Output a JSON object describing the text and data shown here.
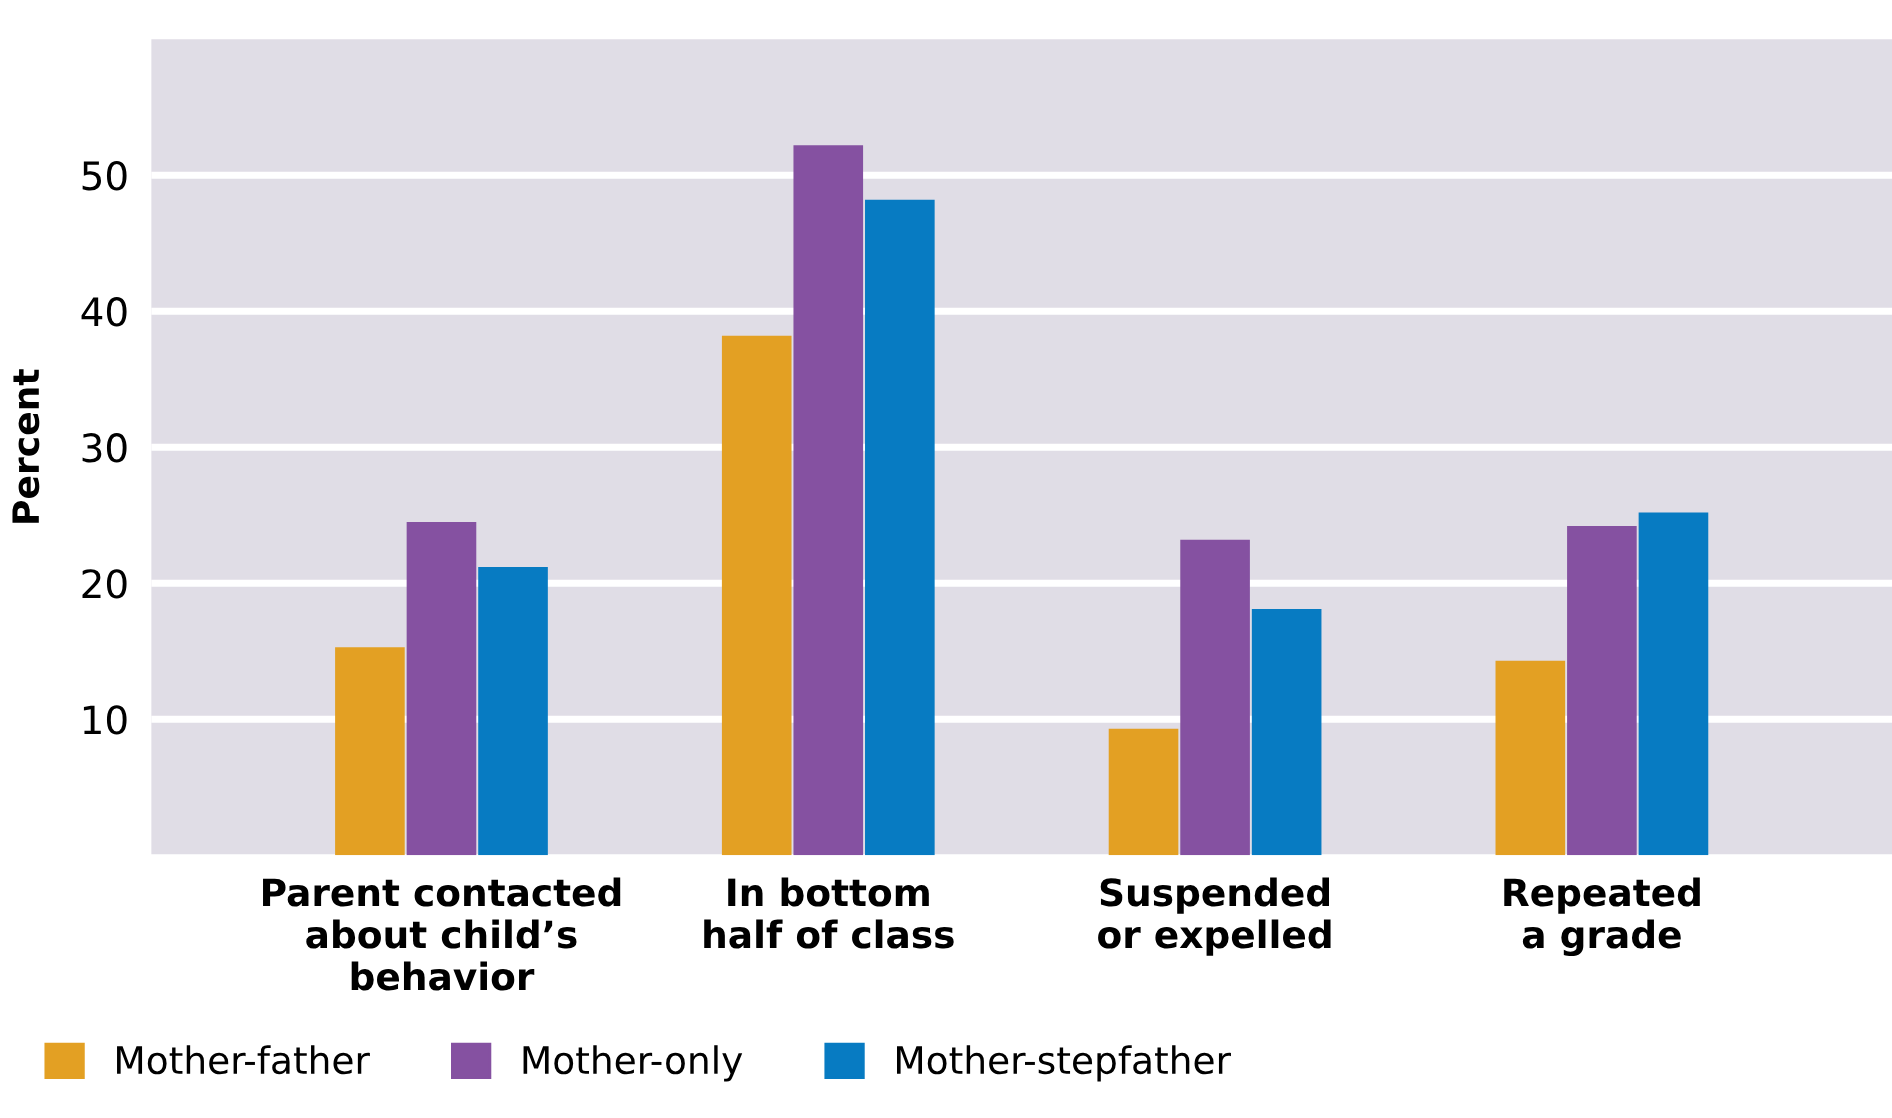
{
  "chart_data": {
    "type": "bar",
    "ylabel": "Percent",
    "categories": [
      "Parent contacted\nabout child’s\nbehavior",
      "In bottom\nhalf of class",
      "Suspended\nor expelled",
      "Repeated\na grade"
    ],
    "series": [
      {
        "name": "Mother-father",
        "color": "#e3a023",
        "values": [
          15.3,
          38.2,
          9.3,
          14.3
        ]
      },
      {
        "name": "Mother-only",
        "color": "#8551a1",
        "values": [
          24.5,
          52.2,
          23.2,
          24.2
        ]
      },
      {
        "name": "Mother-stepfather",
        "color": "#077bc2",
        "values": [
          21.2,
          48.2,
          18.1,
          25.2
        ]
      }
    ],
    "ylim": [
      0,
      60
    ],
    "yticks": [
      10,
      20,
      30,
      40,
      50
    ],
    "grid": "y",
    "legend": "bottom"
  }
}
